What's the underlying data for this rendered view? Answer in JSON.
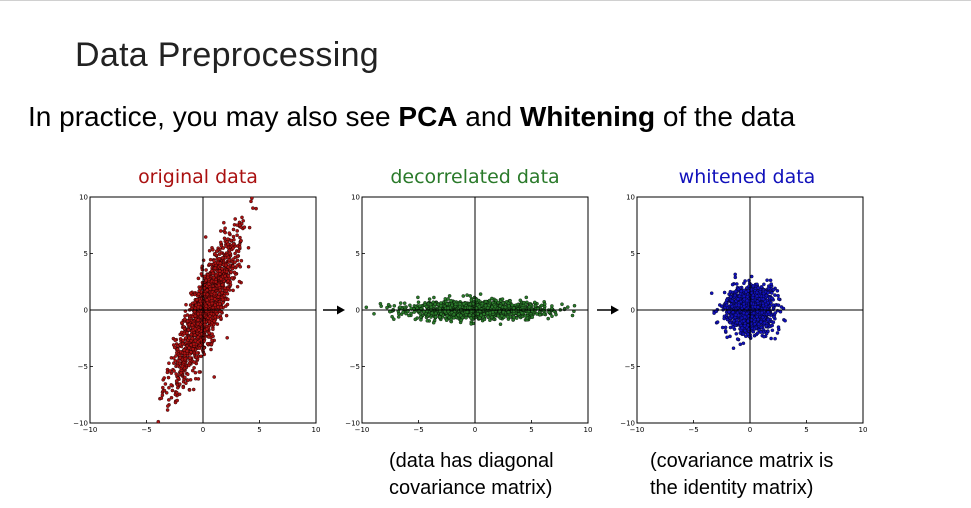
{
  "slide": {
    "title": "Data Preprocessing",
    "subtitle_prefix": "In practice, you may also see ",
    "subtitle_bold_1": "PCA",
    "subtitle_mid": " and ",
    "subtitle_bold_2": "Whitening",
    "subtitle_suffix": " of the data"
  },
  "plots": [
    {
      "title": "original data",
      "color": "#aa1111"
    },
    {
      "title": "decorrelated data",
      "color": "#2a7a2a"
    },
    {
      "title": "whitened data",
      "color": "#1111bb"
    }
  ],
  "captions": {
    "decorrelated_line1": "(data has diagonal",
    "decorrelated_line2": "covariance matrix)",
    "whitened_line1": "(covariance matrix is",
    "whitened_line2": "the identity matrix)"
  },
  "chart_data": [
    {
      "type": "scatter",
      "title": "original data",
      "xlim": [
        -10,
        10
      ],
      "ylim": [
        -10,
        10
      ],
      "xticks": [
        "−10",
        "−5",
        "0",
        "5",
        "10"
      ],
      "yticks": [
        "10",
        "5",
        "0",
        "−5",
        "−10"
      ],
      "marker_fill": "#aa1111",
      "distribution": {
        "center": [
          0.3,
          0.2
        ],
        "major_std": 3.5,
        "minor_std": 0.7,
        "angle_deg": 68
      },
      "grid": false
    },
    {
      "type": "scatter",
      "title": "decorrelated data",
      "xlim": [
        -10,
        10
      ],
      "ylim": [
        -10,
        10
      ],
      "xticks": [
        "−10",
        "−5",
        "0",
        "5",
        "10"
      ],
      "yticks": [
        "10",
        "5",
        "0",
        "−5",
        "−10"
      ],
      "marker_fill": "#2a7a2a",
      "distribution": {
        "center": [
          0,
          0
        ],
        "major_std": 3.0,
        "minor_std": 0.4,
        "angle_deg": 0
      },
      "grid": false
    },
    {
      "type": "scatter",
      "title": "whitened data",
      "xlim": [
        -10,
        10
      ],
      "ylim": [
        -10,
        10
      ],
      "xticks": [
        "−10",
        "−5",
        "0",
        "5",
        "10"
      ],
      "yticks": [
        "10",
        "5",
        "0",
        "−5",
        "−10"
      ],
      "marker_fill": "#1111bb",
      "distribution": {
        "center": [
          0,
          0
        ],
        "major_std": 1.0,
        "minor_std": 1.0,
        "angle_deg": 0
      },
      "grid": false
    }
  ]
}
